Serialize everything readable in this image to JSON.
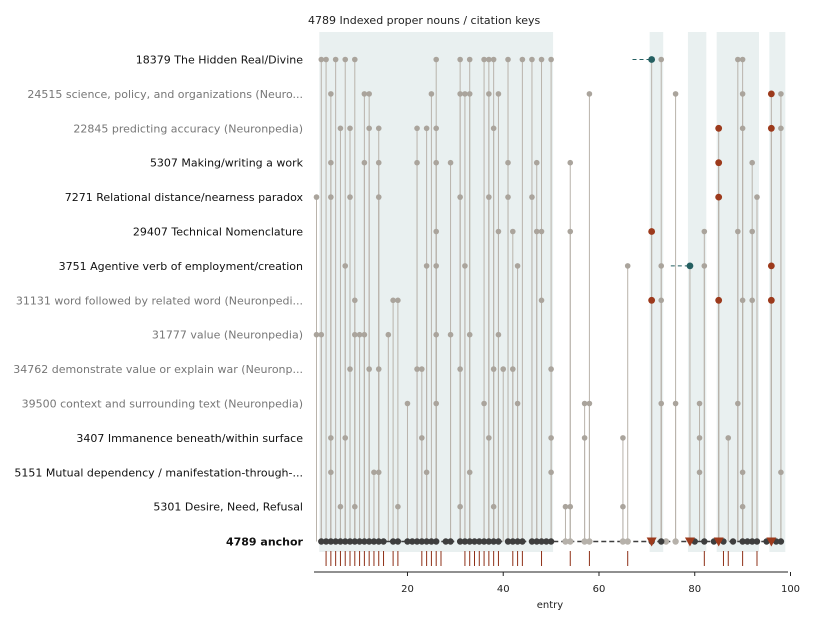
{
  "chart_data": {
    "type": "scatter",
    "title": "4789  Indexed proper nouns / citation keys",
    "xlabel": "entry",
    "xlim": [
      1,
      100
    ],
    "x_ticks": [
      20,
      40,
      60,
      80,
      100
    ],
    "bands": [
      [
        2,
        50
      ],
      [
        71,
        73
      ],
      [
        79,
        82
      ],
      [
        85,
        93
      ],
      [
        96,
        98.5
      ]
    ],
    "anchor": {
      "label": "4789  anchor",
      "dark_points": [
        2,
        3,
        4,
        5,
        6,
        7,
        8,
        9,
        10,
        11,
        12,
        13,
        14,
        15,
        17,
        18,
        20,
        21,
        22,
        23,
        24,
        25,
        26,
        28,
        29,
        31,
        32,
        33,
        34,
        35,
        36,
        37,
        38,
        39,
        41,
        42,
        43,
        44,
        46,
        47,
        48,
        49,
        50,
        71,
        73,
        80,
        82,
        84,
        86,
        88,
        90,
        91,
        92,
        93,
        95,
        97,
        98
      ],
      "light_points": [
        53,
        54,
        57,
        58,
        65,
        66,
        74,
        76
      ],
      "triangles": [
        71,
        79,
        85,
        96
      ],
      "rug": [
        3,
        4,
        5,
        6,
        7,
        8,
        9,
        10,
        11,
        12,
        13,
        14,
        15,
        17,
        18,
        23,
        24,
        25,
        26,
        27,
        32,
        33,
        34,
        35,
        36,
        37,
        38,
        39,
        42,
        43,
        44,
        48,
        54,
        58,
        66,
        82,
        86,
        87,
        90,
        93
      ]
    },
    "rows": [
      {
        "label": "18379  The Hidden Real/Divine",
        "emphasis": "strong",
        "gray_points": [
          2,
          3,
          5,
          7,
          9,
          26,
          31,
          33,
          36,
          37,
          38,
          41,
          44,
          46,
          48,
          50,
          73,
          89,
          90
        ],
        "dark_points": [],
        "teal": [
          {
            "x": 71,
            "from": 67
          }
        ]
      },
      {
        "label": "24515  science, policy, and organizations (Neuro...",
        "emphasis": "muted",
        "gray_points": [
          4,
          11,
          12,
          25,
          31,
          32,
          33,
          37,
          39,
          58,
          76,
          90,
          98
        ],
        "dark_points": [
          96
        ],
        "teal": []
      },
      {
        "label": "22845  predicting accuracy (Neuronpedia)",
        "emphasis": "muted",
        "gray_points": [
          6,
          8,
          12,
          14,
          22,
          24,
          26,
          38,
          90,
          98
        ],
        "dark_points": [
          85,
          96
        ],
        "teal": []
      },
      {
        "label": "5307  Making/writing a work",
        "emphasis": "strong",
        "gray_points": [
          4,
          11,
          14,
          22,
          26,
          29,
          41,
          47,
          54,
          92
        ],
        "dark_points": [
          85
        ],
        "teal": []
      },
      {
        "label": "7271  Relational distance/nearness paradox",
        "emphasis": "strong",
        "gray_points": [
          1,
          4,
          8,
          14,
          31,
          37,
          41,
          46,
          93
        ],
        "dark_points": [
          85
        ],
        "teal": []
      },
      {
        "label": "29407  Technical Nomenclature",
        "emphasis": "strong",
        "gray_points": [
          26,
          39,
          42,
          47,
          48,
          54,
          82,
          89,
          92
        ],
        "dark_points": [
          71
        ],
        "teal": []
      },
      {
        "label": "3751  Agentive verb of employment/creation",
        "emphasis": "strong",
        "gray_points": [
          7,
          24,
          26,
          32,
          43,
          66,
          73,
          82
        ],
        "dark_points": [
          96
        ],
        "teal": [
          {
            "x": 79,
            "from": 75
          }
        ]
      },
      {
        "label": "31131  word followed by related word (Neuronpedi...",
        "emphasis": "muted",
        "gray_points": [
          9,
          17,
          18,
          48,
          73,
          90,
          92
        ],
        "dark_points": [
          71,
          85,
          96
        ],
        "teal": []
      },
      {
        "label": "31777  value (Neuronpedia)",
        "emphasis": "muted",
        "gray_points": [
          1,
          2,
          9,
          10,
          11,
          16,
          26,
          29,
          33,
          39
        ],
        "dark_points": [],
        "teal": []
      },
      {
        "label": "34762  demonstrate value or explain war (Neuronp...",
        "emphasis": "muted",
        "gray_points": [
          8,
          12,
          14,
          22,
          23,
          31,
          38,
          40,
          42,
          50
        ],
        "dark_points": [],
        "teal": []
      },
      {
        "label": "39500  context and surrounding text (Neuronpedia)",
        "emphasis": "muted",
        "gray_points": [
          20,
          26,
          36,
          43,
          57,
          58,
          73,
          76,
          81,
          89
        ],
        "dark_points": [],
        "teal": []
      },
      {
        "label": "3407  Immanence beneath/within surface",
        "emphasis": "strong",
        "gray_points": [
          4,
          7,
          23,
          37,
          50,
          57,
          65,
          81,
          87
        ],
        "dark_points": [],
        "teal": []
      },
      {
        "label": "5151  Mutual dependency / manifestation-through-...",
        "emphasis": "strong",
        "gray_points": [
          4,
          13,
          14,
          24,
          33,
          50,
          81,
          90,
          98
        ],
        "dark_points": [],
        "teal": []
      },
      {
        "label": "5301  Desire, Need, Refusal",
        "emphasis": "strong",
        "gray_points": [
          6,
          9,
          18,
          31,
          38,
          53,
          54,
          65,
          90
        ],
        "dark_points": [],
        "teal": []
      }
    ],
    "colors": {
      "band": "#e9f0f0",
      "gray_point": "#aaa49c",
      "stem": "#b9b3ab",
      "dark_point": "#9c3a1c",
      "teal_point": "#245f61",
      "anchor_point": "#3e3e3e",
      "anchor_light": "#b6b1aa",
      "rug": "#8e2f16",
      "label_strong": "#111111",
      "label_muted": "#777777"
    }
  }
}
